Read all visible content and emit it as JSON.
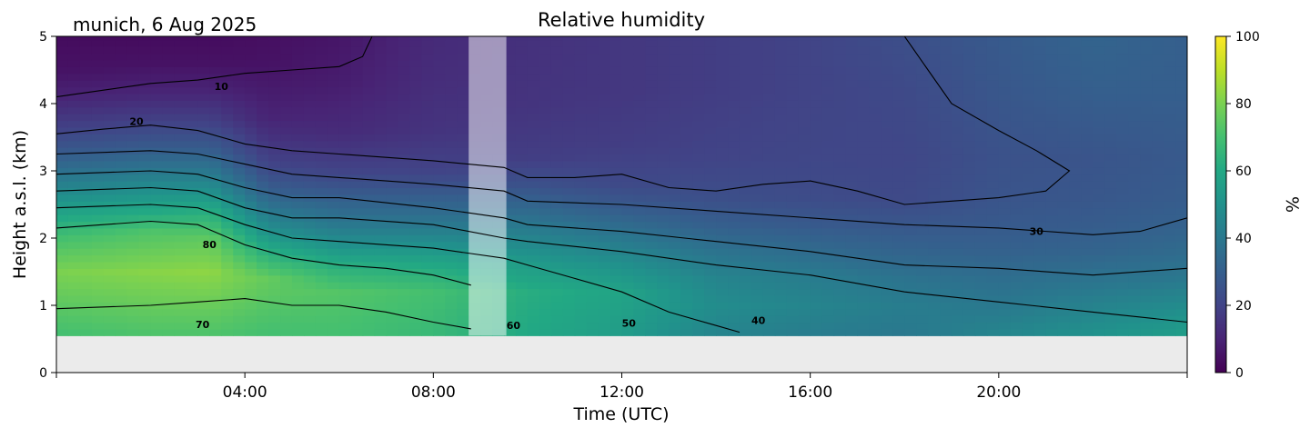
{
  "chart_data": {
    "type": "heatmap",
    "title": "Relative humidity",
    "location_date": "munich, 6 Aug 2025",
    "xlabel": "Time (UTC)",
    "ylabel": "Height a.s.l. (km)",
    "xlim_hours": [
      0,
      24
    ],
    "ylim": [
      0,
      5
    ],
    "x_ticks": [
      {
        "hour": 4,
        "label": "04:00"
      },
      {
        "hour": 8,
        "label": "08:00"
      },
      {
        "hour": 12,
        "label": "12:00"
      },
      {
        "hour": 16,
        "label": "16:00"
      },
      {
        "hour": 20,
        "label": "20:00"
      }
    ],
    "y_ticks": [
      "0",
      "1",
      "2",
      "3",
      "4",
      "5"
    ],
    "colorbar": {
      "label": "%",
      "range": [
        0,
        100
      ],
      "ticks": [
        "0",
        "20",
        "40",
        "60",
        "80",
        "100"
      ],
      "colormap": "viridis"
    },
    "data_lower_height_km": 0.55,
    "missing_interval_hours": [
      8.75,
      9.55
    ],
    "contour_labels": [
      {
        "text": "10",
        "hour": 3.5,
        "km": 4.2
      },
      {
        "text": "20",
        "hour": 1.7,
        "km": 3.68
      },
      {
        "text": "30",
        "hour": 20.8,
        "km": 2.05
      },
      {
        "text": "80",
        "hour": 3.25,
        "km": 1.85
      },
      {
        "text": "70",
        "hour": 3.1,
        "km": 0.66
      },
      {
        "text": "60",
        "hour": 9.7,
        "km": 0.65
      },
      {
        "text": "50",
        "hour": 12.15,
        "km": 0.68
      },
      {
        "text": "40",
        "hour": 14.9,
        "km": 0.72
      }
    ],
    "profile_hours": [
      0,
      2,
      3.3,
      4.5,
      6,
      8,
      10,
      12,
      14,
      16,
      18,
      20,
      22,
      24
    ],
    "rh_profiles": [
      [
        [
          0.6,
          70
        ],
        [
          1.5,
          80
        ],
        [
          2.0,
          70
        ],
        [
          2.3,
          60
        ],
        [
          2.6,
          50
        ],
        [
          2.9,
          40
        ],
        [
          3.2,
          30
        ],
        [
          3.6,
          20
        ],
        [
          4.1,
          10
        ],
        [
          4.5,
          5
        ],
        [
          5.0,
          3
        ]
      ],
      [
        [
          0.6,
          72
        ],
        [
          1.5,
          82
        ],
        [
          2.1,
          72
        ],
        [
          2.4,
          60
        ],
        [
          2.7,
          50
        ],
        [
          3.0,
          40
        ],
        [
          3.3,
          30
        ],
        [
          3.7,
          20
        ],
        [
          4.2,
          10
        ],
        [
          4.6,
          5
        ],
        [
          5.0,
          3
        ]
      ],
      [
        [
          0.6,
          72
        ],
        [
          1.5,
          83
        ],
        [
          2.0,
          75
        ],
        [
          2.4,
          62
        ],
        [
          2.7,
          50
        ],
        [
          3.0,
          40
        ],
        [
          3.3,
          30
        ],
        [
          3.7,
          20
        ],
        [
          4.2,
          10
        ],
        [
          4.6,
          5
        ],
        [
          5.0,
          3
        ]
      ],
      [
        [
          0.6,
          70
        ],
        [
          1.4,
          76
        ],
        [
          1.8,
          62
        ],
        [
          2.1,
          50
        ],
        [
          2.4,
          40
        ],
        [
          2.7,
          30
        ],
        [
          3.1,
          20
        ],
        [
          3.8,
          10
        ],
        [
          4.6,
          5
        ],
        [
          5.0,
          4
        ]
      ],
      [
        [
          0.6,
          70
        ],
        [
          1.2,
          73
        ],
        [
          1.6,
          62
        ],
        [
          1.9,
          50
        ],
        [
          2.2,
          40
        ],
        [
          2.6,
          30
        ],
        [
          3.0,
          20
        ],
        [
          3.6,
          12
        ],
        [
          4.3,
          8
        ],
        [
          5.0,
          6
        ]
      ],
      [
        [
          0.6,
          67
        ],
        [
          1.2,
          70
        ],
        [
          1.6,
          60
        ],
        [
          1.9,
          50
        ],
        [
          2.2,
          40
        ],
        [
          2.6,
          30
        ],
        [
          3.0,
          20
        ],
        [
          3.6,
          15
        ],
        [
          4.3,
          13
        ],
        [
          5.0,
          12
        ]
      ],
      [
        [
          0.6,
          60
        ],
        [
          1.2,
          62
        ],
        [
          1.6,
          55
        ],
        [
          2.0,
          45
        ],
        [
          2.4,
          35
        ],
        [
          2.8,
          25
        ],
        [
          3.2,
          18
        ],
        [
          4.0,
          15
        ],
        [
          5.0,
          14
        ]
      ],
      [
        [
          0.6,
          55
        ],
        [
          1.2,
          58
        ],
        [
          1.6,
          50
        ],
        [
          2.0,
          40
        ],
        [
          2.4,
          30
        ],
        [
          2.8,
          22
        ],
        [
          3.4,
          18
        ],
        [
          4.2,
          16
        ],
        [
          5.0,
          16
        ]
      ],
      [
        [
          0.6,
          45
        ],
        [
          1.0,
          48
        ],
        [
          1.4,
          45
        ],
        [
          1.8,
          38
        ],
        [
          2.2,
          30
        ],
        [
          2.6,
          24
        ],
        [
          3.2,
          20
        ],
        [
          4.2,
          18
        ],
        [
          5.0,
          18
        ]
      ],
      [
        [
          0.6,
          42
        ],
        [
          1.0,
          45
        ],
        [
          1.4,
          42
        ],
        [
          1.8,
          35
        ],
        [
          2.2,
          28
        ],
        [
          2.6,
          23
        ],
        [
          3.2,
          21
        ],
        [
          4.2,
          20
        ],
        [
          5.0,
          20
        ]
      ],
      [
        [
          0.6,
          40
        ],
        [
          1.0,
          42
        ],
        [
          1.4,
          38
        ],
        [
          1.8,
          32
        ],
        [
          2.2,
          27
        ],
        [
          2.6,
          22
        ],
        [
          3.2,
          21
        ],
        [
          4.2,
          22
        ],
        [
          5.0,
          24
        ]
      ],
      [
        [
          0.6,
          45
        ],
        [
          1.0,
          40
        ],
        [
          1.4,
          36
        ],
        [
          1.8,
          31
        ],
        [
          2.2,
          28
        ],
        [
          2.6,
          26
        ],
        [
          3.2,
          25
        ],
        [
          4.2,
          27
        ],
        [
          5.0,
          28
        ]
      ],
      [
        [
          0.6,
          50
        ],
        [
          1.0,
          44
        ],
        [
          1.4,
          38
        ],
        [
          1.8,
          32
        ],
        [
          2.2,
          29
        ],
        [
          2.6,
          27
        ],
        [
          3.2,
          26
        ],
        [
          4.2,
          30
        ],
        [
          5.0,
          32
        ]
      ],
      [
        [
          0.6,
          55
        ],
        [
          1.0,
          48
        ],
        [
          1.4,
          40
        ],
        [
          1.8,
          35
        ],
        [
          2.2,
          31
        ],
        [
          2.6,
          29
        ],
        [
          3.2,
          28
        ],
        [
          4.2,
          30
        ],
        [
          5.0,
          30
        ]
      ]
    ],
    "contour_lines": [
      {
        "level": 10,
        "points": [
          [
            0,
            4.1
          ],
          [
            1,
            4.2
          ],
          [
            2,
            4.3
          ],
          [
            3,
            4.35
          ],
          [
            4,
            4.45
          ],
          [
            5,
            4.5
          ],
          [
            6,
            4.55
          ],
          [
            6.5,
            4.7
          ],
          [
            6.7,
            5.0
          ]
        ]
      },
      {
        "level": 20,
        "points": [
          [
            0,
            3.55
          ],
          [
            1,
            3.62
          ],
          [
            2,
            3.68
          ],
          [
            3,
            3.6
          ],
          [
            4,
            3.4
          ],
          [
            5,
            3.3
          ],
          [
            6,
            3.25
          ],
          [
            7,
            3.2
          ],
          [
            8,
            3.15
          ],
          [
            9.5,
            3.05
          ],
          [
            10,
            2.9
          ],
          [
            11,
            2.9
          ],
          [
            12,
            2.95
          ],
          [
            13,
            2.75
          ],
          [
            14,
            2.7
          ],
          [
            15,
            2.8
          ],
          [
            16,
            2.85
          ],
          [
            17,
            2.7
          ],
          [
            18,
            2.5
          ],
          [
            19,
            2.55
          ],
          [
            20,
            2.6
          ],
          [
            21,
            2.7
          ],
          [
            21.5,
            3.0
          ],
          [
            20.8,
            3.3
          ],
          [
            20,
            3.6
          ],
          [
            19,
            4.0
          ],
          [
            18.5,
            4.5
          ],
          [
            18,
            5.0
          ]
        ]
      },
      {
        "level": 30,
        "points": [
          [
            0,
            3.25
          ],
          [
            2,
            3.3
          ],
          [
            3,
            3.25
          ],
          [
            4,
            3.1
          ],
          [
            5,
            2.95
          ],
          [
            6,
            2.9
          ],
          [
            8,
            2.8
          ],
          [
            9.5,
            2.7
          ],
          [
            10,
            2.55
          ],
          [
            12,
            2.5
          ],
          [
            14,
            2.4
          ],
          [
            16,
            2.3
          ],
          [
            18,
            2.2
          ],
          [
            20,
            2.15
          ],
          [
            22,
            2.05
          ],
          [
            23,
            2.1
          ],
          [
            24,
            2.3
          ]
        ]
      },
      {
        "level": 40,
        "points": [
          [
            0,
            2.95
          ],
          [
            2,
            3.0
          ],
          [
            3,
            2.95
          ],
          [
            4,
            2.75
          ],
          [
            5,
            2.6
          ],
          [
            6,
            2.6
          ],
          [
            8,
            2.45
          ],
          [
            9.5,
            2.3
          ],
          [
            10,
            2.2
          ],
          [
            12,
            2.1
          ],
          [
            14,
            1.95
          ],
          [
            16,
            1.8
          ],
          [
            18,
            1.6
          ],
          [
            20,
            1.55
          ],
          [
            22,
            1.45
          ],
          [
            24,
            1.55
          ]
        ]
      },
      {
        "level": 50,
        "points": [
          [
            0,
            2.7
          ],
          [
            2,
            2.75
          ],
          [
            3,
            2.7
          ],
          [
            4,
            2.45
          ],
          [
            5,
            2.3
          ],
          [
            6,
            2.3
          ],
          [
            8,
            2.2
          ],
          [
            9.5,
            2.0
          ],
          [
            10,
            1.95
          ],
          [
            12,
            1.8
          ],
          [
            14,
            1.6
          ],
          [
            16,
            1.45
          ],
          [
            18,
            1.2
          ],
          [
            20,
            1.05
          ],
          [
            22,
            0.9
          ],
          [
            24,
            0.75
          ]
        ]
      },
      {
        "level": 60,
        "points": [
          [
            0,
            2.45
          ],
          [
            2,
            2.5
          ],
          [
            3,
            2.45
          ],
          [
            4,
            2.2
          ],
          [
            5,
            2.0
          ],
          [
            6,
            1.95
          ],
          [
            8,
            1.85
          ],
          [
            9.5,
            1.7
          ],
          [
            10,
            1.6
          ],
          [
            11,
            1.4
          ],
          [
            12,
            1.2
          ],
          [
            13,
            0.9
          ],
          [
            14,
            0.7
          ],
          [
            14.5,
            0.6
          ]
        ]
      },
      {
        "level": 70,
        "points": [
          [
            0,
            2.15
          ],
          [
            1,
            2.2
          ],
          [
            2,
            2.25
          ],
          [
            3,
            2.2
          ],
          [
            4,
            1.9
          ],
          [
            5,
            1.7
          ],
          [
            6,
            1.6
          ],
          [
            7,
            1.55
          ],
          [
            8,
            1.45
          ],
          [
            8.8,
            1.3
          ]
        ]
      },
      {
        "level": 80,
        "points": [
          [
            0,
            0.95
          ],
          [
            2,
            1.0
          ],
          [
            3,
            1.05
          ],
          [
            4,
            1.1
          ],
          [
            5,
            1.0
          ],
          [
            6,
            1.0
          ],
          [
            7,
            0.9
          ],
          [
            8,
            0.75
          ],
          [
            8.8,
            0.65
          ]
        ]
      }
    ]
  }
}
